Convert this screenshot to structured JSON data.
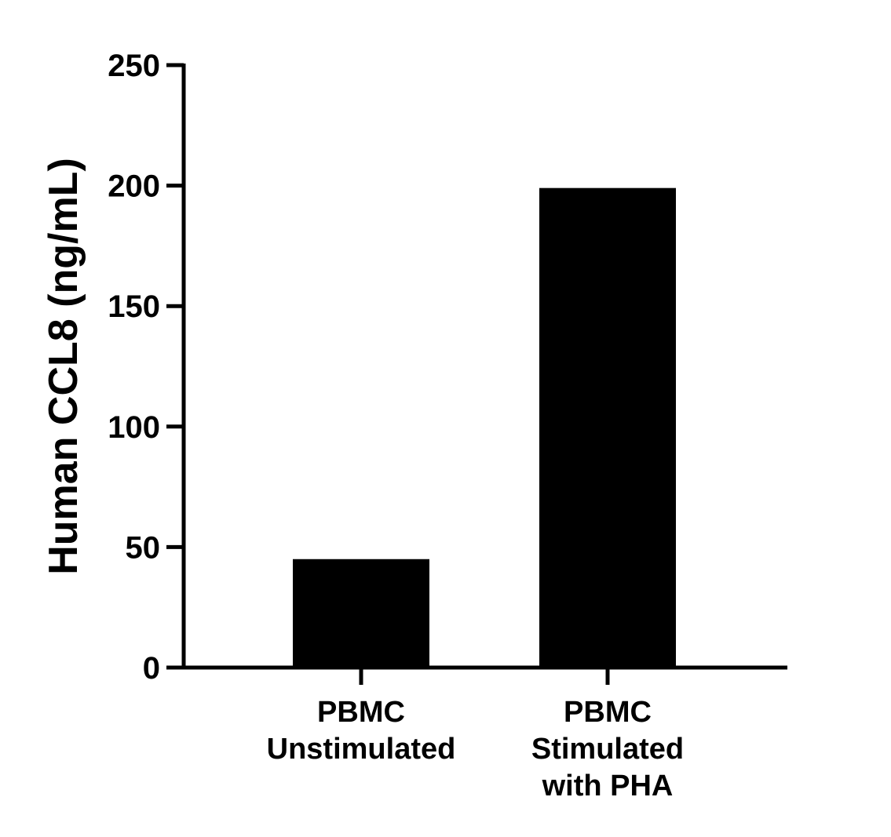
{
  "chart_data": {
    "type": "bar",
    "categories": [
      [
        "PBMC",
        "Unstimulated"
      ],
      [
        "PBMC",
        "Stimulated",
        "with PHA"
      ]
    ],
    "values": [
      45,
      199
    ],
    "title": "",
    "xlabel": "",
    "ylabel": "Human CCL8 (ng/mL)",
    "ylim": [
      0,
      250
    ],
    "yticks": [
      0,
      50,
      100,
      150,
      200,
      250
    ],
    "grid": false,
    "legend": "none",
    "bar_color": "#000000",
    "axis_color": "#000000"
  }
}
